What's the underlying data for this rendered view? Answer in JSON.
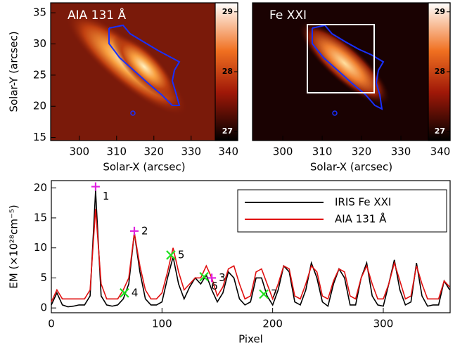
{
  "chart_data": [
    {
      "type": "image",
      "title": "AIA 131 Å",
      "xlabel": "Solar-X (arcsec)",
      "ylabel": "Solar-Y (arcsec)",
      "xlim": [
        292.3,
        342.5
      ],
      "ylim": [
        14.5,
        36.6
      ],
      "xticks": [
        300,
        310,
        320,
        330,
        340
      ],
      "yticks": [
        15,
        20,
        25,
        30,
        35
      ],
      "clim": [
        26.85,
        29.15
      ],
      "cticks": [
        27,
        28,
        29
      ]
    },
    {
      "type": "image",
      "title": "Fe XXI",
      "xlabel": "Solar-X (arcsec)",
      "xlim": [
        292.3,
        342.5
      ],
      "xticks": [
        300,
        310,
        320,
        330,
        340
      ],
      "clim": [
        26.85,
        29.15
      ],
      "cticks": [
        27,
        28,
        29
      ]
    },
    {
      "type": "line",
      "xlabel": "Pixel",
      "ylabel": "EM (×10²⁸cm⁻⁵)",
      "xlim": [
        0,
        360.4
      ],
      "ylim": [
        -0.8,
        21.2
      ],
      "xticks": [
        0,
        100,
        200,
        300
      ],
      "yticks": [
        0,
        5,
        10,
        15,
        20
      ],
      "x": [
        0,
        5,
        10,
        15,
        20,
        25,
        30,
        35,
        40,
        45,
        50,
        55,
        60,
        65,
        70,
        75,
        80,
        85,
        90,
        95,
        100,
        105,
        110,
        115,
        120,
        125,
        130,
        135,
        140,
        145,
        150,
        155,
        160,
        165,
        170,
        175,
        180,
        185,
        190,
        195,
        200,
        205,
        210,
        215,
        220,
        225,
        230,
        235,
        240,
        245,
        250,
        255,
        260,
        265,
        270,
        275,
        280,
        285,
        290,
        295,
        300,
        305,
        310,
        315,
        320,
        325,
        330,
        335,
        340,
        345,
        350,
        355,
        360
      ],
      "series": [
        {
          "name": "IRIS Fe XXI",
          "color": "#000000",
          "values": [
            0.5,
            2.5,
            0.5,
            0.2,
            0.3,
            0.5,
            0.5,
            2,
            19.5,
            2,
            0.5,
            0.3,
            0.5,
            1.5,
            4,
            12.5,
            6,
            1.5,
            0.5,
            0.5,
            1,
            5,
            8.5,
            4,
            1.5,
            3.5,
            5,
            4,
            5.5,
            3,
            1,
            2.5,
            6,
            5,
            1.5,
            0.5,
            1,
            5,
            5,
            2,
            0.5,
            3,
            7,
            6,
            1,
            0.5,
            3,
            7.5,
            5,
            1,
            0.3,
            4,
            6.5,
            5,
            0.5,
            0.5,
            5,
            7.5,
            2,
            0.5,
            0.3,
            4,
            8,
            3,
            0.5,
            1,
            7.5,
            2,
            0.3,
            0.5,
            0.5,
            4.5,
            3
          ]
        },
        {
          "name": "AIA 131 Å",
          "color": "#e01010",
          "values": [
            1,
            3,
            1.5,
            1.5,
            1.5,
            1.5,
            1.5,
            3,
            16.5,
            4,
            1.5,
            1.5,
            1.5,
            3,
            5,
            12.5,
            7,
            3,
            1.5,
            1.5,
            2.5,
            6,
            10,
            6,
            3,
            4,
            5,
            5,
            7,
            5,
            2,
            3.5,
            6.5,
            7,
            4,
            1.5,
            2,
            6,
            6.5,
            4,
            1.5,
            4,
            7,
            6.5,
            2,
            1.5,
            4,
            7,
            6,
            2,
            1.5,
            4.5,
            6.5,
            6,
            2,
            1.5,
            5,
            7,
            4,
            1.5,
            1.5,
            4,
            7.5,
            4.5,
            1.5,
            2,
            7,
            4,
            1.5,
            1.5,
            1.5,
            4.5,
            3.5
          ]
        }
      ],
      "markers": [
        {
          "label": "1",
          "x": 40,
          "y": 20.2,
          "marker": "+",
          "color": "#e020e0"
        },
        {
          "label": "2",
          "x": 75,
          "y": 12.8,
          "marker": "+",
          "color": "#e020e0"
        },
        {
          "label": "3",
          "x": 145,
          "y": 5,
          "marker": "+",
          "color": "#e020e0"
        },
        {
          "label": "4",
          "x": 66,
          "y": 2.5,
          "marker": "x",
          "color": "#20e020"
        },
        {
          "label": "5",
          "x": 108,
          "y": 8.8,
          "marker": "x",
          "color": "#20e020"
        },
        {
          "label": "6",
          "x": 138,
          "y": 5.2,
          "marker": "x",
          "color": "#20e020"
        },
        {
          "label": "7",
          "x": 192,
          "y": 2.3,
          "marker": "x",
          "color": "#20e020"
        }
      ]
    }
  ]
}
